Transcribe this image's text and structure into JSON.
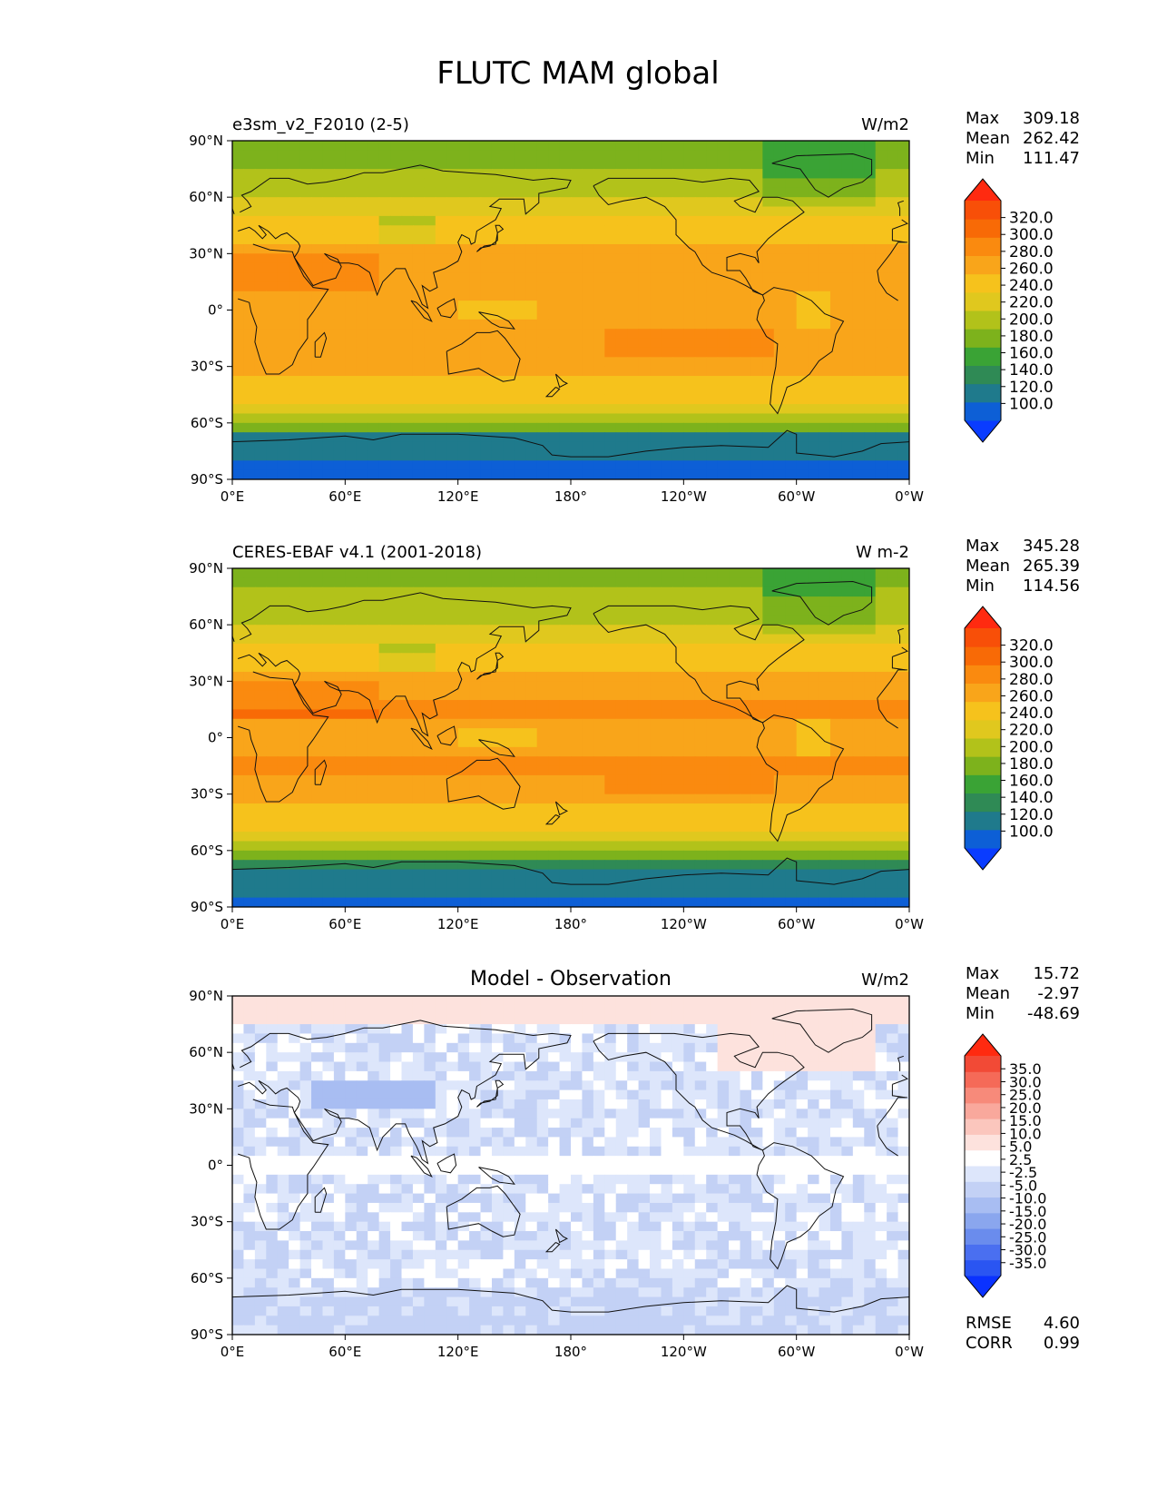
{
  "title": "FLUTC MAM global",
  "lat_ticks": [
    "90°N",
    "60°N",
    "30°N",
    "0°",
    "30°S",
    "60°S",
    "90°S"
  ],
  "lon_ticks": [
    "0°E",
    "60°E",
    "120°E",
    "180°",
    "120°W",
    "60°W",
    "0°W"
  ],
  "panels": [
    {
      "left_title": "e3sm_v2_F2010 (2-5)",
      "center_title": "",
      "units": "W/m2",
      "stats": [
        {
          "label": "Max",
          "value": "309.18"
        },
        {
          "label": "Mean",
          "value": "262.42"
        },
        {
          "label": "Min",
          "value": "111.47"
        }
      ],
      "colorbar": {
        "tick_labels": [
          "320.0",
          "300.0",
          "280.0",
          "260.0",
          "240.0",
          "220.0",
          "200.0",
          "180.0",
          "160.0",
          "140.0",
          "120.0",
          "100.0"
        ],
        "colors": [
          "#0a3cff",
          "#0d5fd6",
          "#1f7a8c",
          "#2f8a55",
          "#3aa335",
          "#7db21c",
          "#b2c21a",
          "#e0c81e",
          "#f6c21c",
          "#f9a51a",
          "#fa8a0f",
          "#f86a06",
          "#f84f08",
          "#ff2a10"
        ]
      },
      "field": "model"
    },
    {
      "left_title": "CERES-EBAF v4.1 (2001-2018)",
      "center_title": "",
      "units": "W m-2",
      "stats": [
        {
          "label": "Max",
          "value": "345.28"
        },
        {
          "label": "Mean",
          "value": "265.39"
        },
        {
          "label": "Min",
          "value": "114.56"
        }
      ],
      "colorbar": {
        "tick_labels": [
          "320.0",
          "300.0",
          "280.0",
          "260.0",
          "240.0",
          "220.0",
          "200.0",
          "180.0",
          "160.0",
          "140.0",
          "120.0",
          "100.0"
        ],
        "colors": [
          "#0a3cff",
          "#0d5fd6",
          "#1f7a8c",
          "#2f8a55",
          "#3aa335",
          "#7db21c",
          "#b2c21a",
          "#e0c81e",
          "#f6c21c",
          "#f9a51a",
          "#fa8a0f",
          "#f86a06",
          "#f84f08",
          "#ff2a10"
        ]
      },
      "field": "obs"
    },
    {
      "left_title": "",
      "center_title": "Model - Observation",
      "units": "W/m2",
      "stats": [
        {
          "label": "Max",
          "value": "15.72"
        },
        {
          "label": "Mean",
          "value": "-2.97"
        },
        {
          "label": "Min",
          "value": "-48.69"
        }
      ],
      "colorbar": {
        "tick_labels": [
          "35.0",
          "30.0",
          "25.0",
          "20.0",
          "15.0",
          "10.0",
          "5.0",
          "2.5",
          "-2.5",
          "-5.0",
          "-10.0",
          "-15.0",
          "-20.0",
          "-25.0",
          "-30.0",
          "-35.0"
        ],
        "colors": [
          "#0a32ff",
          "#2a55f2",
          "#4a6ff0",
          "#6a8ced",
          "#8aa6ee",
          "#a8bdf2",
          "#c3d1f5",
          "#dde6fb",
          "#ffffff",
          "#fde2dd",
          "#fbc6bd",
          "#f9a89c",
          "#f78a7a",
          "#f56a58",
          "#f24a36",
          "#ff2a10"
        ]
      },
      "field": "diff",
      "extra_stats": [
        {
          "label": "RMSE",
          "value": "4.60"
        },
        {
          "label": "CORR",
          "value": "0.99"
        }
      ]
    }
  ]
}
